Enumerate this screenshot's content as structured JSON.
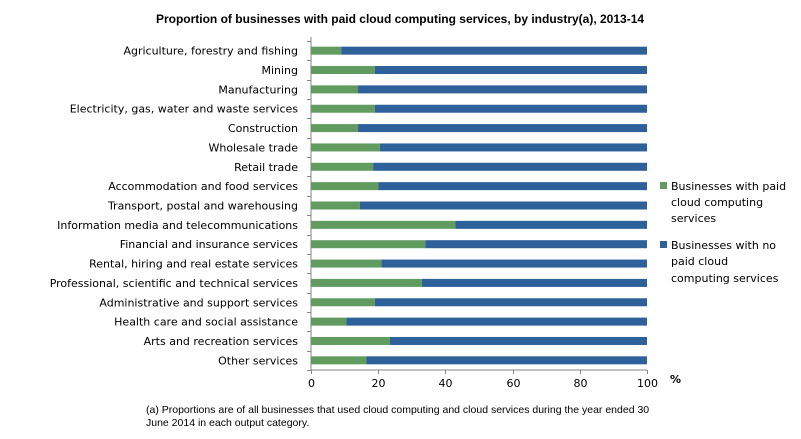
{
  "chart_data": {
    "type": "bar",
    "orientation": "horizontal",
    "stacked": true,
    "title": "Proportion of businesses  with paid cloud computing services, by industry(a),  2013-14",
    "xlabel": "%",
    "ylabel": "",
    "xlim": [
      0,
      100
    ],
    "xticks": [
      "0",
      "20",
      "40",
      "60",
      "80",
      "100"
    ],
    "grid": false,
    "legend_position": "right",
    "categories": [
      "Agriculture, forestry and fishing",
      "Mining",
      "Manufacturing",
      "Electricity, gas, water and waste services",
      "Construction",
      "Wholesale trade",
      "Retail trade",
      "Accommodation and food services",
      "Transport, postal and warehousing",
      "Information media and telecommunications",
      "Financial and insurance services",
      "Rental, hiring and real estate services",
      "Professional, scientific and technical services",
      "Administrative and support services",
      "Health care and social assistance",
      "Arts and recreation services",
      "Other services"
    ],
    "series": [
      {
        "name": "Businesses with paid cloud computing services",
        "legend_lines": [
          "Businesses with paid",
          "cloud computing",
          "services"
        ],
        "color": "#629b5f",
        "values": [
          9,
          19,
          14,
          19,
          14,
          20.5,
          18.5,
          20,
          14.5,
          43,
          34,
          21,
          33,
          19,
          10.5,
          23.5,
          16.5
        ]
      },
      {
        "name": "Businesses with no paid cloud computing services",
        "legend_lines": [
          "Businesses with no",
          "paid cloud",
          "computing services"
        ],
        "color": "#2e6099",
        "values": [
          91,
          81,
          86,
          81,
          86,
          79.5,
          81.5,
          80,
          85.5,
          57,
          66,
          79,
          67,
          81,
          89.5,
          76.5,
          83.5
        ]
      }
    ],
    "footnote": [
      "(a) Proportions are of all businesses that used cloud computing and cloud services during the year ended 30",
      "June 2014 in each output category."
    ]
  }
}
